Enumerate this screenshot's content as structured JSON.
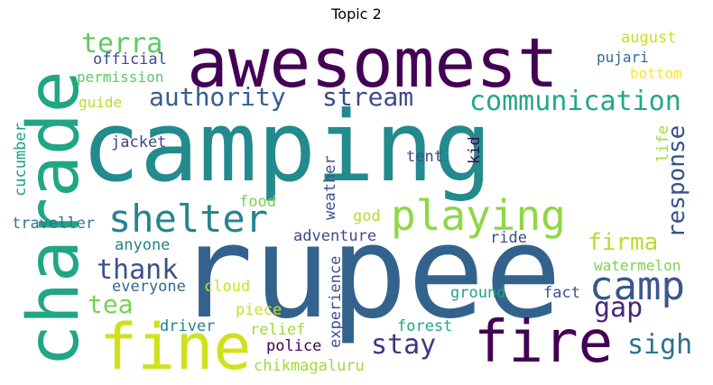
{
  "title": "Topic 2",
  "words": {
    "camping": {
      "text": "camping",
      "color": "#238a8d"
    },
    "rupee": {
      "text": "rupee",
      "color": "#33638d"
    },
    "awesomest": {
      "text": "awesomest",
      "color": "#440154"
    },
    "charade": {
      "text": "charade",
      "color": "#21a685"
    },
    "fine": {
      "text": "fine",
      "color": "#d0e11c"
    },
    "fire": {
      "text": "fire",
      "color": "#440154"
    },
    "playing": {
      "text": "playing",
      "color": "#8fd744"
    },
    "shelter": {
      "text": "shelter",
      "color": "#25858e"
    },
    "camp": {
      "text": "camp",
      "color": "#39568c"
    },
    "communication": {
      "text": "communication",
      "color": "#22a884"
    },
    "authority": {
      "text": "authority",
      "color": "#355f8d"
    },
    "stream": {
      "text": "stream",
      "color": "#3e4a89"
    },
    "terra": {
      "text": "terra",
      "color": "#5ec962"
    },
    "response": {
      "text": "response",
      "color": "#3b528b"
    },
    "firma": {
      "text": "firma",
      "color": "#b5de2b"
    },
    "thank": {
      "text": "thank",
      "color": "#3b528b"
    },
    "gap": {
      "text": "gap",
      "color": "#482677"
    },
    "tea": {
      "text": "tea",
      "color": "#7ad151"
    },
    "stay": {
      "text": "stay",
      "color": "#463480"
    },
    "sigh": {
      "text": "sigh",
      "color": "#2c728e"
    },
    "official": {
      "text": "official",
      "color": "#3e4a89"
    },
    "permission": {
      "text": "permission",
      "color": "#5ec962"
    },
    "guide": {
      "text": "guide",
      "color": "#b5de2b"
    },
    "august": {
      "text": "august",
      "color": "#c8e020"
    },
    "pujari": {
      "text": "pujari",
      "color": "#31688e"
    },
    "bottom": {
      "text": "bottom",
      "color": "#fde725"
    },
    "jacket": {
      "text": "jacket",
      "color": "#414487"
    },
    "tent": {
      "text": "tent",
      "color": "#3e4a89"
    },
    "kid": {
      "text": "kid",
      "color": "#440154"
    },
    "life": {
      "text": "life",
      "color": "#a0da39"
    },
    "cucumber": {
      "text": "cucumber",
      "color": "#1f9e89"
    },
    "weather": {
      "text": "weather",
      "color": "#3b528b"
    },
    "food": {
      "text": "food",
      "color": "#7ad151"
    },
    "traveller": {
      "text": "traveller",
      "color": "#2a788e"
    },
    "god": {
      "text": "god",
      "color": "#b5de2b"
    },
    "adventure": {
      "text": "adventure",
      "color": "#3e4a89"
    },
    "ride": {
      "text": "ride",
      "color": "#3e4a89"
    },
    "anyone": {
      "text": "anyone",
      "color": "#26828e"
    },
    "watermelon": {
      "text": "watermelon",
      "color": "#7ad151"
    },
    "experience": {
      "text": "experience",
      "color": "#3b528b"
    },
    "everyone": {
      "text": "everyone",
      "color": "#31688e"
    },
    "cloud": {
      "text": "cloud",
      "color": "#d0e11c"
    },
    "ground": {
      "text": "ground",
      "color": "#20a386"
    },
    "fact": {
      "text": "fact",
      "color": "#3b528b"
    },
    "driver": {
      "text": "driver",
      "color": "#26828e"
    },
    "piece": {
      "text": "piece",
      "color": "#c8e020"
    },
    "relief": {
      "text": "relief",
      "color": "#a0da39"
    },
    "forest": {
      "text": "forest",
      "color": "#22a884"
    },
    "police": {
      "text": "police",
      "color": "#440154"
    },
    "chikmagaluru": {
      "text": "chikmagaluru",
      "color": "#9fda3a"
    }
  }
}
